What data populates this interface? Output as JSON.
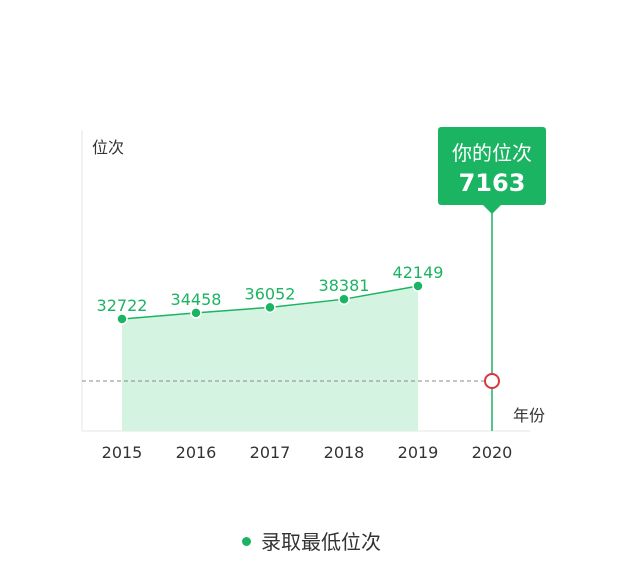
{
  "chart_data": {
    "type": "line",
    "y_axis_title": "位次",
    "x_axis_title": "年份",
    "categories": [
      "2015",
      "2016",
      "2017",
      "2018",
      "2019",
      "2020"
    ],
    "series": [
      {
        "name": "录取最低位次",
        "x": [
          "2015",
          "2016",
          "2017",
          "2018",
          "2019"
        ],
        "values": [
          32722,
          34458,
          36052,
          38381,
          42149
        ]
      }
    ],
    "your_rank": {
      "label": "你的位次",
      "value": 7163,
      "value_text": "7163",
      "year": "2020"
    },
    "colors": {
      "line": "#1bb462",
      "area": "#d4f3e1",
      "callout": "#1bb462",
      "marker": "#d9363e",
      "reference_line": "#888888"
    }
  },
  "legend": {
    "label": "录取最低位次"
  }
}
